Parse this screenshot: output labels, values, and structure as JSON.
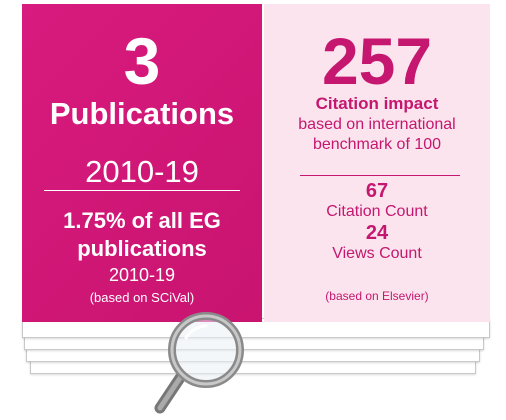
{
  "left": {
    "number": "3",
    "label": "Publications",
    "period": "2010-19",
    "share": "1.75% of all EG",
    "share_unit": "publications",
    "share_period": "2010-19",
    "source": "(based on SCiVal)"
  },
  "right": {
    "number": "257",
    "label": "Citation impact",
    "description": [
      "based on international",
      "benchmark of 100"
    ],
    "metrics": [
      {
        "value": "67",
        "label": "Citation Count"
      },
      {
        "value": "24",
        "label": "Views Count"
      }
    ],
    "source": "(based on Elsevier)"
  }
}
